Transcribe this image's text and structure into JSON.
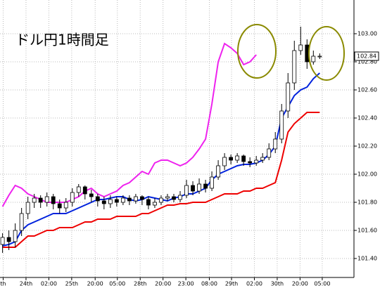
{
  "chart_data": {
    "type": "candlestick",
    "title": "ドル円1時間足",
    "ylim": [
      101.265,
      103.24
    ],
    "xlim": [
      -0.4,
      55.4
    ],
    "grid": true,
    "yticks": [
      {
        "value": 103,
        "label": "103.00"
      },
      {
        "value": 102.8,
        "label": "102.80"
      },
      {
        "value": 102.6,
        "label": "102.60"
      },
      {
        "value": 102.4,
        "label": "102.40"
      },
      {
        "value": 102.2,
        "label": "102.20"
      },
      {
        "value": 102,
        "label": "102.00"
      },
      {
        "value": 101.8,
        "label": "101.80"
      },
      {
        "value": 101.6,
        "label": "101.60"
      },
      {
        "value": 101.4,
        "label": "101.40"
      }
    ],
    "xticks": [
      {
        "value": 0.1,
        "label": "th"
      },
      {
        "value": 3.7,
        "label": "24th"
      },
      {
        "value": 7.3,
        "label": "02:00"
      },
      {
        "value": 10.9,
        "label": "25th"
      },
      {
        "value": 14.6,
        "label": "20:00"
      },
      {
        "value": 18.1,
        "label": "05:00"
      },
      {
        "value": 21.7,
        "label": "28th"
      },
      {
        "value": 25.3,
        "label": "20:00"
      },
      {
        "value": 28.9,
        "label": "23:00"
      },
      {
        "value": 32.6,
        "label": "08:00"
      },
      {
        "value": 36.1,
        "label": "29th"
      },
      {
        "value": 39.7,
        "label": "02:00"
      },
      {
        "value": 43.3,
        "label": "30th"
      },
      {
        "value": 46.9,
        "label": "20:00"
      },
      {
        "value": 50.4,
        "label": "05:00"
      }
    ],
    "last_price": 102.84,
    "open": [
      101.5,
      101.55,
      101.52,
      101.6,
      101.72,
      101.8,
      101.83,
      101.8,
      101.84,
      101.79,
      101.76,
      101.8,
      101.87,
      101.91,
      101.86,
      101.84,
      101.81,
      101.79,
      101.82,
      101.8,
      101.83,
      101.81,
      101.84,
      101.82,
      101.78,
      101.8,
      101.83,
      101.84,
      101.82,
      101.85,
      101.92,
      101.88,
      101.93,
      101.9,
      101.98,
      102.06,
      102.12,
      102.1,
      102.13,
      102.09,
      102.08,
      102.1,
      102.12,
      102.18,
      102.25,
      102.45,
      102.65,
      102.88,
      102.92,
      102.8,
      102.84
    ],
    "high": [
      101.58,
      101.6,
      101.65,
      101.76,
      101.84,
      101.86,
      101.85,
      101.87,
      101.86,
      101.82,
      101.83,
      101.9,
      101.93,
      101.92,
      101.89,
      101.86,
      101.84,
      101.85,
      101.84,
      101.85,
      101.85,
      101.86,
      101.85,
      101.84,
      101.83,
      101.85,
      101.86,
      101.86,
      101.88,
      101.96,
      101.95,
      101.97,
      101.96,
      102.02,
      102.1,
      102.15,
      102.14,
      102.15,
      102.14,
      102.12,
      102.13,
      102.15,
      102.22,
      102.3,
      102.5,
      102.72,
      102.95,
      103.05,
      102.96,
      102.88,
      102.86
    ],
    "low": [
      101.44,
      101.46,
      101.48,
      101.56,
      101.68,
      101.76,
      101.76,
      101.77,
      101.75,
      101.72,
      101.73,
      101.77,
      101.84,
      101.82,
      101.8,
      101.77,
      101.75,
      101.76,
      101.77,
      101.78,
      101.78,
      101.79,
      101.78,
      101.75,
      101.76,
      101.78,
      101.81,
      101.8,
      101.8,
      101.83,
      101.85,
      101.86,
      101.87,
      101.88,
      101.96,
      102.03,
      102.07,
      102.08,
      102.06,
      102.05,
      102.06,
      102.08,
      102.1,
      102.15,
      102.22,
      102.4,
      102.6,
      102.85,
      102.75,
      102.78,
      102.82
    ],
    "close": [
      101.55,
      101.52,
      101.6,
      101.72,
      101.8,
      101.83,
      101.8,
      101.84,
      101.79,
      101.76,
      101.8,
      101.87,
      101.91,
      101.86,
      101.84,
      101.81,
      101.79,
      101.82,
      101.8,
      101.83,
      101.81,
      101.84,
      101.82,
      101.78,
      101.8,
      101.83,
      101.84,
      101.82,
      101.85,
      101.92,
      101.88,
      101.93,
      101.9,
      101.98,
      102.06,
      102.12,
      102.1,
      102.13,
      102.09,
      102.08,
      102.1,
      102.12,
      102.18,
      102.25,
      102.45,
      102.65,
      102.88,
      102.92,
      102.8,
      102.84,
      102.84
    ],
    "lines": [
      {
        "color": "#ee0000",
        "values": [
          101.48,
          101.48,
          101.48,
          101.52,
          101.56,
          101.56,
          101.58,
          101.6,
          101.6,
          101.62,
          101.62,
          101.62,
          101.64,
          101.66,
          101.66,
          101.68,
          101.68,
          101.68,
          101.7,
          101.7,
          101.7,
          101.7,
          101.72,
          101.72,
          101.74,
          101.76,
          101.78,
          101.78,
          101.79,
          101.79,
          101.8,
          101.8,
          101.8,
          101.82,
          101.84,
          101.86,
          101.86,
          101.86,
          101.88,
          101.88,
          101.9,
          101.9,
          101.92,
          101.94,
          102.1,
          102.3,
          102.36,
          102.4,
          102.44,
          102.44,
          102.44
        ]
      },
      {
        "color": "#0022dd",
        "values": [
          101.49,
          101.5,
          101.52,
          101.6,
          101.64,
          101.66,
          101.68,
          101.7,
          101.72,
          101.72,
          101.72,
          101.74,
          101.76,
          101.78,
          101.8,
          101.82,
          101.82,
          101.83,
          101.84,
          101.84,
          101.82,
          101.81,
          101.82,
          101.84,
          101.83,
          101.82,
          101.81,
          101.83,
          101.84,
          101.86,
          101.86,
          101.88,
          101.9,
          101.96,
          102.0,
          102.02,
          102.04,
          102.06,
          102.07,
          102.07,
          102.08,
          102.1,
          102.14,
          102.2,
          102.4,
          102.48,
          102.56,
          102.6,
          102.62,
          102.68,
          102.72
        ]
      },
      {
        "color": "#ee22ee",
        "values": [
          101.77,
          101.85,
          101.92,
          101.9,
          101.86,
          101.84,
          101.82,
          101.8,
          101.8,
          101.8,
          101.8,
          101.82,
          101.84,
          101.88,
          101.9,
          101.86,
          101.84,
          101.86,
          101.88,
          101.92,
          101.94,
          101.98,
          102.02,
          102.0,
          102.08,
          102.1,
          102.1,
          102.08,
          102.06,
          102.08,
          102.12,
          102.18,
          102.25,
          102.5,
          102.8,
          102.93,
          102.9,
          102.86,
          102.78,
          102.8,
          102.85,
          null,
          null,
          null,
          null,
          null,
          null,
          null,
          null,
          null,
          null
        ]
      }
    ]
  }
}
